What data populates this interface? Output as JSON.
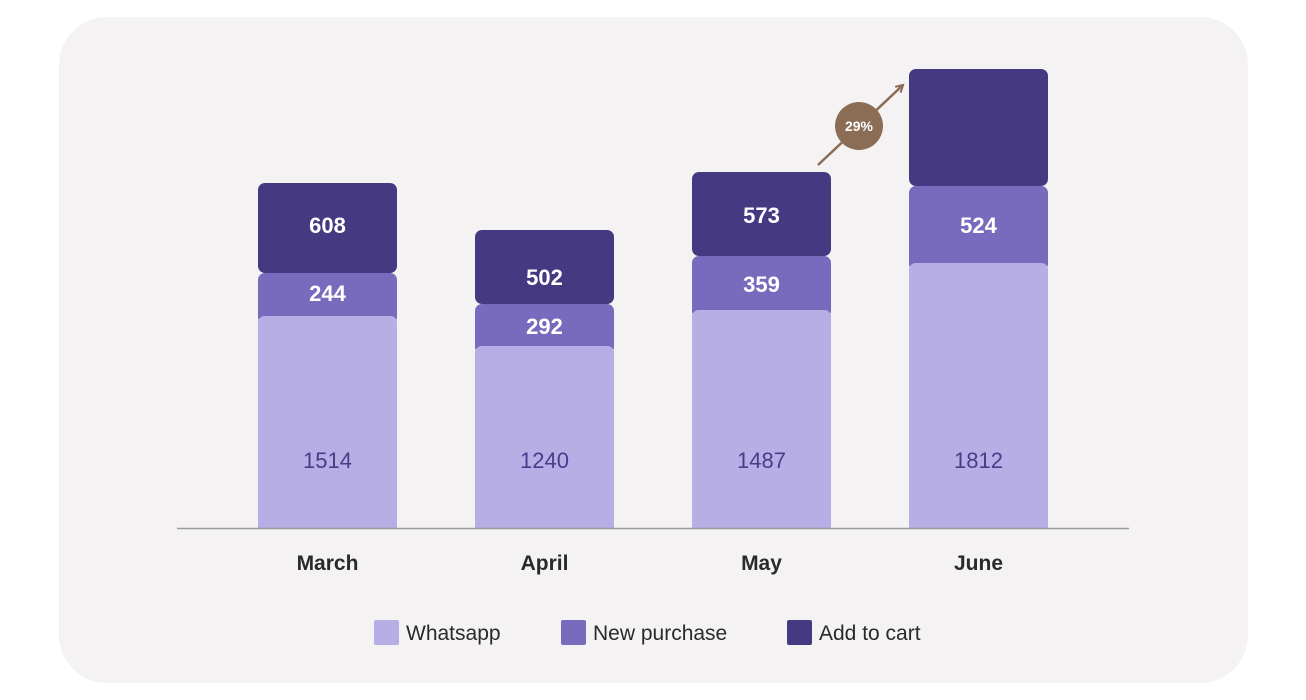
{
  "chart_data": {
    "type": "bar",
    "stacked": true,
    "categories": [
      "March",
      "April",
      "May",
      "June"
    ],
    "series": [
      {
        "name": "Whatsapp",
        "color": "#b6aee4",
        "values": [
          1514,
          1240,
          1487,
          1812
        ]
      },
      {
        "name": "New purchase",
        "color": "#786bbd",
        "values": [
          244,
          292,
          359,
          524
        ]
      },
      {
        "name": "Add to cart",
        "color": "#453a82",
        "values": [
          608,
          502,
          573,
          null
        ]
      }
    ],
    "annotation": {
      "text": "29%",
      "color": "#8b6c55",
      "between": [
        "May",
        "June"
      ]
    },
    "legend_position": "bottom",
    "grid": false
  }
}
